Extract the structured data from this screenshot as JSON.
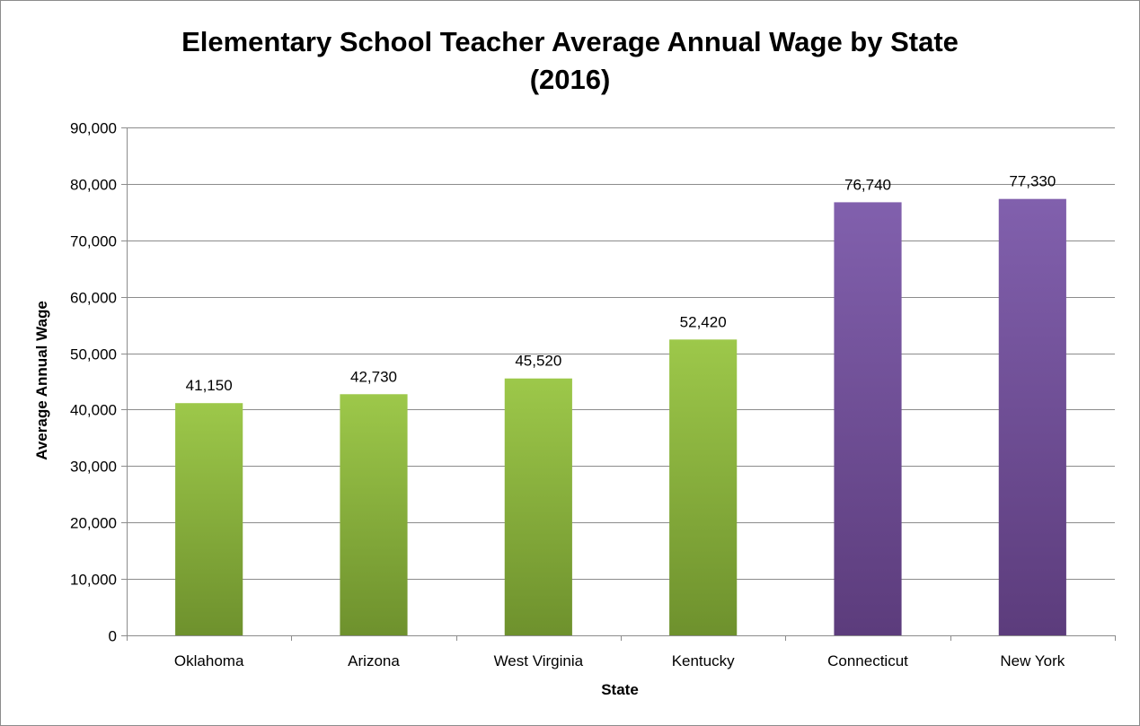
{
  "chart_data": {
    "type": "bar",
    "title_line1": "Elementary School Teacher Average Annual Wage by State",
    "title_line2": "(2016)",
    "xlabel": "State",
    "ylabel": "Average Annual Wage",
    "ylim": [
      0,
      90000
    ],
    "y_ticks": [
      {
        "value": 0,
        "label": "0"
      },
      {
        "value": 10000,
        "label": "10,000"
      },
      {
        "value": 20000,
        "label": "20,000"
      },
      {
        "value": 30000,
        "label": "30,000"
      },
      {
        "value": 40000,
        "label": "40,000"
      },
      {
        "value": 50000,
        "label": "50,000"
      },
      {
        "value": 60000,
        "label": "60,000"
      },
      {
        "value": 70000,
        "label": "70,000"
      },
      {
        "value": 80000,
        "label": "80,000"
      },
      {
        "value": 90000,
        "label": "90,000"
      }
    ],
    "grid": true,
    "legend": "none",
    "categories": [
      "Oklahoma",
      "Arizona",
      "West Virginia",
      "Kentucky",
      "Connecticut",
      "New York"
    ],
    "values": [
      41150,
      42730,
      45520,
      52420,
      76740,
      77330
    ],
    "data_labels": [
      "41,150",
      "42,730",
      "45,520",
      "52,420",
      "76,740",
      "77,330"
    ],
    "bar_colors": [
      "green",
      "green",
      "green",
      "green",
      "purple",
      "purple"
    ],
    "colors": {
      "green_top": "#9dc84a",
      "green_bottom": "#6e912d",
      "purple_top": "#8160ad",
      "purple_bottom": "#5c3c7c",
      "gridline": "#8c8c8c"
    }
  }
}
